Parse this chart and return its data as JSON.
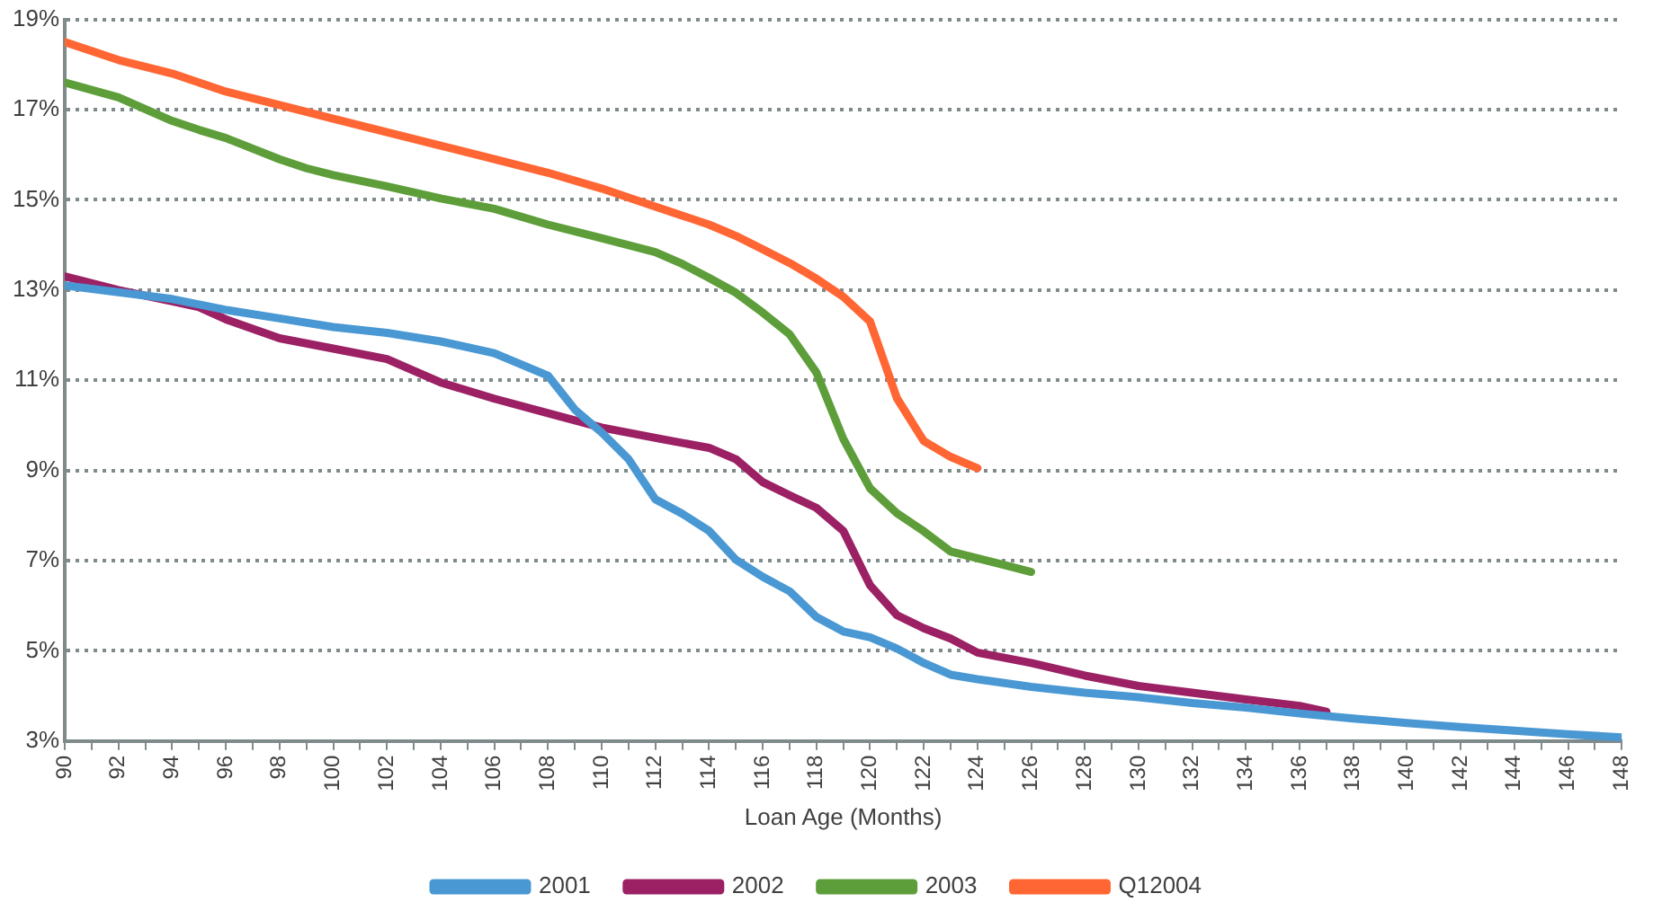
{
  "chart_data": {
    "type": "line",
    "xlabel": "Loan Age (Months)",
    "xlim": [
      90,
      148
    ],
    "xticks": [
      90,
      {
        "value": 91,
        "label": null
      },
      92,
      {
        "value": 93,
        "label": null
      },
      94,
      {
        "value": 95,
        "label": null
      },
      96,
      {
        "value": 97,
        "label": null
      },
      98,
      {
        "value": 99,
        "label": null
      },
      100,
      {
        "value": 101,
        "label": null
      },
      102,
      {
        "value": 103,
        "label": null
      },
      104,
      {
        "value": 105,
        "label": null
      },
      106,
      {
        "value": 107,
        "label": null
      },
      108,
      {
        "value": 109,
        "label": null
      },
      110,
      {
        "value": 111,
        "label": null
      },
      112,
      {
        "value": 113,
        "label": null
      },
      114,
      {
        "value": 115,
        "label": null
      },
      116,
      {
        "value": 117,
        "label": null
      },
      118,
      {
        "value": 119,
        "label": null
      },
      120,
      {
        "value": 121,
        "label": null
      },
      122,
      {
        "value": 123,
        "label": null
      },
      124,
      {
        "value": 125,
        "label": null
      },
      126,
      {
        "value": 127,
        "label": null
      },
      128,
      {
        "value": 129,
        "label": null
      },
      130,
      {
        "value": 131,
        "label": null
      },
      132,
      {
        "value": 133,
        "label": null
      },
      134,
      {
        "value": 135,
        "label": null
      },
      136,
      {
        "value": 137,
        "label": null
      },
      138,
      {
        "value": 139,
        "label": null
      },
      140,
      {
        "value": 141,
        "label": null
      },
      142,
      {
        "value": 143,
        "label": null
      },
      144,
      {
        "value": 145,
        "label": null
      },
      146,
      {
        "value": 147,
        "label": null
      },
      148
    ],
    "ylim": [
      3,
      19
    ],
    "yticks": [
      {
        "value": 3,
        "label": "3%"
      },
      {
        "value": 5,
        "label": "5%"
      },
      {
        "value": 7,
        "label": "7%"
      },
      {
        "value": 9,
        "label": "9%"
      },
      {
        "value": 11,
        "label": "11%"
      },
      {
        "value": 13,
        "label": "13%"
      },
      {
        "value": 15,
        "label": "15%"
      },
      {
        "value": 17,
        "label": "17%"
      },
      {
        "value": 19,
        "label": "19%"
      }
    ],
    "grid": "y",
    "legend": "bottom",
    "marker": "none",
    "line_style": "solid",
    "series": [
      {
        "name": "2001",
        "color": "#4a98d3",
        "x": [
          90,
          92,
          94,
          96,
          98,
          100,
          102,
          104,
          106,
          107,
          108,
          109,
          110,
          111,
          112,
          113,
          114,
          115,
          116,
          117,
          118,
          119,
          120,
          121,
          122,
          123,
          124,
          126,
          128,
          130,
          132,
          134,
          136,
          138,
          140,
          142,
          144,
          146,
          148
        ],
        "values": [
          13.1,
          12.95,
          12.8,
          12.56,
          12.37,
          12.18,
          12.05,
          11.86,
          11.6,
          11.35,
          11.1,
          10.35,
          9.84,
          9.25,
          8.36,
          8.04,
          7.66,
          7.02,
          6.64,
          6.32,
          5.75,
          5.43,
          5.3,
          5.05,
          4.73,
          4.47,
          4.37,
          4.2,
          4.07,
          3.97,
          3.84,
          3.74,
          3.61,
          3.5,
          3.4,
          3.31,
          3.23,
          3.15,
          3.08
        ]
      },
      {
        "name": "2002",
        "color": "#9b2064",
        "x": [
          90,
          92,
          94,
          95,
          96,
          98,
          100,
          102,
          104,
          106,
          108,
          110,
          112,
          114,
          115,
          116,
          117,
          118,
          119,
          120,
          121,
          122,
          123,
          124,
          126,
          128,
          130,
          132,
          134,
          136,
          137
        ],
        "values": [
          13.3,
          13.0,
          12.75,
          12.62,
          12.35,
          11.93,
          11.7,
          11.47,
          10.95,
          10.59,
          10.27,
          9.95,
          9.72,
          9.5,
          9.25,
          8.74,
          8.45,
          8.17,
          7.66,
          6.45,
          5.79,
          5.5,
          5.27,
          4.96,
          4.73,
          4.45,
          4.22,
          4.07,
          3.92,
          3.78,
          3.65
        ]
      },
      {
        "name": "2003",
        "color": "#5d9e3a",
        "x": [
          90,
          92,
          94,
          95,
          96,
          98,
          99,
          100,
          102,
          104,
          106,
          108,
          110,
          112,
          113,
          114,
          115,
          116,
          117,
          118,
          119,
          120,
          121,
          122,
          123,
          124,
          125,
          126
        ],
        "values": [
          17.6,
          17.27,
          16.75,
          16.55,
          16.37,
          15.9,
          15.7,
          15.55,
          15.3,
          15.03,
          14.8,
          14.45,
          14.15,
          13.84,
          13.58,
          13.27,
          12.94,
          12.5,
          12.02,
          11.17,
          9.7,
          8.6,
          8.05,
          7.65,
          7.2,
          7.05,
          6.9,
          6.75
        ]
      },
      {
        "name": "Q12004",
        "color": "#ff6633",
        "x": [
          90,
          92,
          94,
          96,
          98,
          100,
          102,
          104,
          106,
          108,
          110,
          112,
          113,
          114,
          115,
          116,
          117,
          118,
          119,
          120,
          121,
          122,
          123,
          124
        ],
        "values": [
          18.5,
          18.1,
          17.8,
          17.4,
          17.1,
          16.8,
          16.5,
          16.2,
          15.9,
          15.6,
          15.25,
          14.85,
          14.65,
          14.45,
          14.2,
          13.9,
          13.6,
          13.25,
          12.85,
          12.3,
          10.6,
          9.65,
          9.3,
          9.05
        ]
      }
    ]
  }
}
